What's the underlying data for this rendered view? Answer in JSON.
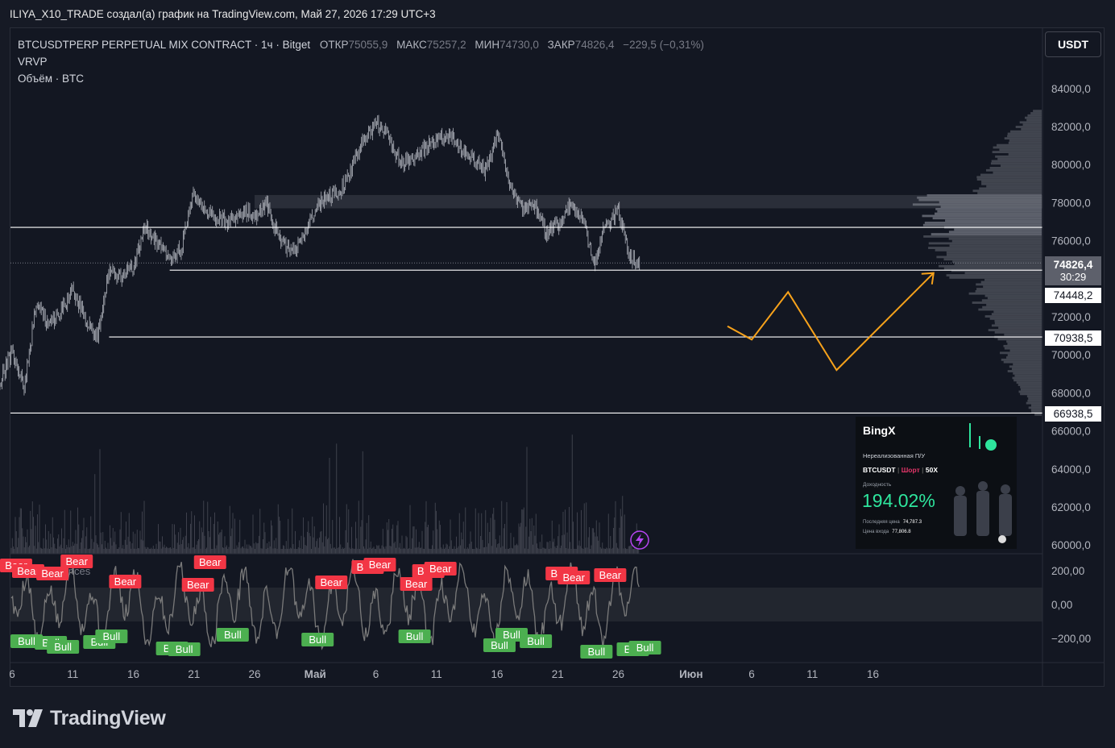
{
  "header": {
    "title": "ILIYA_X10_TRADE создал(а) график на TradingView.com, Май 27, 2026 17:29 UTC+3"
  },
  "legend": {
    "symbol": "BTCUSDTPERP PERPETUAL MIX CONTRACT · 1ч · Bitget",
    "open_label": "ОТКР",
    "open": "75055,9",
    "high_label": "МАКС",
    "high": "75257,2",
    "low_label": "МИН",
    "low": "74730,0",
    "close_label": "ЗАКР",
    "close": "74826,4",
    "change": "−229,5 (−0,31%)",
    "indicator_1": "VRVP",
    "indicator_2": "Объём · BTC"
  },
  "currency_button": "USDT",
  "price_tags": {
    "last_price": "74826,4",
    "countdown": "30:29",
    "line_1": "74448,2",
    "line_2": "70938,5",
    "line_3": "66938,5"
  },
  "colors": {
    "background": "#131722",
    "candle": "#B2B5BE",
    "level_line": "#FFFFFF",
    "zone": "#2A2E39",
    "arrow": "#F7A21B",
    "bull_label": "#4CAF50",
    "bear_label": "#F23645",
    "oscillator": "#7A7A7A",
    "volume": "#434651"
  },
  "overlay_labels": {
    "bear": "Bear",
    "bull": "Bull",
    "divergences": "Divergences"
  },
  "promo": {
    "brand": "BingX",
    "unrealized": "Нереализованная П/У",
    "pair": "BTCUSDT",
    "side": "Шорт",
    "leverage": "50X",
    "yield_label": "Доходность",
    "yield": "194.02%",
    "last_price_label": "Последняя цена",
    "last_price": "74,787.3",
    "entry_price_label": "Цена входа",
    "entry_price": "77,806.8"
  },
  "footer": {
    "brand": "TradingView"
  },
  "chart_data": {
    "type": "candlestick",
    "title": "BTCUSDTPERP PERPETUAL MIX CONTRACT · 1ч · Bitget",
    "y_axis": {
      "range": [
        59000,
        86500
      ],
      "ticks": [
        {
          "value": 84000,
          "label": "84000,0"
        },
        {
          "value": 82000,
          "label": "82000,0"
        },
        {
          "value": 80000,
          "label": "80000,0"
        },
        {
          "value": 78000,
          "label": "78000,0"
        },
        {
          "value": 76000,
          "label": "76000,0"
        },
        {
          "value": 72000,
          "label": "72000,0"
        },
        {
          "value": 70000,
          "label": "70000,0"
        },
        {
          "value": 68000,
          "label": "68000,0"
        },
        {
          "value": 66000,
          "label": "66000,0"
        },
        {
          "value": 64000,
          "label": "64000,0"
        },
        {
          "value": 62000,
          "label": "62000,0"
        },
        {
          "value": 60000,
          "label": "60000,0"
        }
      ]
    },
    "oscillator_axis": {
      "range": [
        -300,
        300
      ],
      "ticks": [
        {
          "value": 200,
          "label": "200,00"
        },
        {
          "value": 0,
          "label": "0,00"
        },
        {
          "value": -200,
          "label": "−200,00"
        }
      ]
    },
    "x_axis": {
      "range": [
        "2026-04-05",
        "2026-06-18"
      ],
      "ticks": [
        {
          "date": "2026-04-06",
          "label": "6"
        },
        {
          "date": "2026-04-11",
          "label": "11"
        },
        {
          "date": "2026-04-16",
          "label": "16"
        },
        {
          "date": "2026-04-21",
          "label": "21"
        },
        {
          "date": "2026-04-26",
          "label": "26"
        },
        {
          "date": "2026-05-01",
          "label": "Май"
        },
        {
          "date": "2026-05-06",
          "label": "6"
        },
        {
          "date": "2026-05-11",
          "label": "11"
        },
        {
          "date": "2026-05-16",
          "label": "16"
        },
        {
          "date": "2026-05-21",
          "label": "21"
        },
        {
          "date": "2026-05-26",
          "label": "26"
        },
        {
          "date": "2026-06-01",
          "label": "Июн"
        },
        {
          "date": "2026-06-06",
          "label": "6"
        },
        {
          "date": "2026-06-11",
          "label": "11"
        },
        {
          "date": "2026-06-16",
          "label": "16"
        }
      ]
    },
    "price_path": [
      [
        "2026-04-05",
        68500
      ],
      [
        "2026-04-06",
        70200
      ],
      [
        "2026-04-07",
        68300
      ],
      [
        "2026-04-08",
        72700
      ],
      [
        "2026-04-09",
        71500
      ],
      [
        "2026-04-10",
        72200
      ],
      [
        "2026-04-11",
        73400
      ],
      [
        "2026-04-12",
        71900
      ],
      [
        "2026-04-13",
        70900
      ],
      [
        "2026-04-14",
        74500
      ],
      [
        "2026-04-15",
        74100
      ],
      [
        "2026-04-16",
        74600
      ],
      [
        "2026-04-17",
        76800
      ],
      [
        "2026-04-18",
        75800
      ],
      [
        "2026-04-19",
        75100
      ],
      [
        "2026-04-20",
        75600
      ],
      [
        "2026-04-21",
        78600
      ],
      [
        "2026-04-22",
        77400
      ],
      [
        "2026-04-23",
        77200
      ],
      [
        "2026-04-24",
        77000
      ],
      [
        "2026-04-25",
        77500
      ],
      [
        "2026-04-26",
        77300
      ],
      [
        "2026-04-27",
        77900
      ],
      [
        "2026-04-28",
        76200
      ],
      [
        "2026-04-29",
        75300
      ],
      [
        "2026-04-30",
        76200
      ],
      [
        "2026-05-01",
        77600
      ],
      [
        "2026-05-02",
        78300
      ],
      [
        "2026-05-03",
        78500
      ],
      [
        "2026-05-04",
        79800
      ],
      [
        "2026-05-05",
        81300
      ],
      [
        "2026-05-06",
        82200
      ],
      [
        "2026-05-07",
        81500
      ],
      [
        "2026-05-08",
        80100
      ],
      [
        "2026-05-09",
        80200
      ],
      [
        "2026-05-10",
        80900
      ],
      [
        "2026-05-11",
        81200
      ],
      [
        "2026-05-12",
        81600
      ],
      [
        "2026-05-13",
        80900
      ],
      [
        "2026-05-14",
        80400
      ],
      [
        "2026-05-15",
        79600
      ],
      [
        "2026-05-16",
        81600
      ],
      [
        "2026-05-17",
        79100
      ],
      [
        "2026-05-18",
        77700
      ],
      [
        "2026-05-19",
        77800
      ],
      [
        "2026-05-20",
        76500
      ],
      [
        "2026-05-21",
        76800
      ],
      [
        "2026-05-22",
        77900
      ],
      [
        "2026-05-23",
        77200
      ],
      [
        "2026-05-24",
        74900
      ],
      [
        "2026-05-25",
        76900
      ],
      [
        "2026-05-26",
        77600
      ],
      [
        "2026-05-27",
        75100
      ],
      [
        "2026-05-27T18:00",
        74826.4
      ]
    ],
    "last_price": 74826.4,
    "horizontal_lines": [
      76700,
      74448.2,
      70938.5,
      66938.5
    ],
    "zone": {
      "from": 77700,
      "to": 78400
    },
    "projection_arrow": [
      [
        "2026-06-04",
        71500
      ],
      [
        "2026-06-06",
        70800
      ],
      [
        "2026-06-09",
        73300
      ],
      [
        "2026-06-13",
        69200
      ],
      [
        "2026-06-21",
        74300
      ]
    ],
    "bear_signals": [
      "2026-04-05",
      "2026-04-06",
      "2026-04-08",
      "2026-04-10",
      "2026-04-14",
      "2026-04-20",
      "2026-04-21",
      "2026-05-01",
      "2026-05-04",
      "2026-05-05",
      "2026-05-08",
      "2026-05-09",
      "2026-05-10",
      "2026-05-20",
      "2026-05-21",
      "2026-05-24"
    ],
    "bull_signals": [
      "2026-04-06",
      "2026-04-08",
      "2026-04-09",
      "2026-04-12",
      "2026-04-13",
      "2026-04-18",
      "2026-04-19",
      "2026-04-23",
      "2026-04-30",
      "2026-05-08",
      "2026-05-15",
      "2026-05-16",
      "2026-05-18",
      "2026-05-23",
      "2026-05-26",
      "2026-05-27"
    ]
  }
}
